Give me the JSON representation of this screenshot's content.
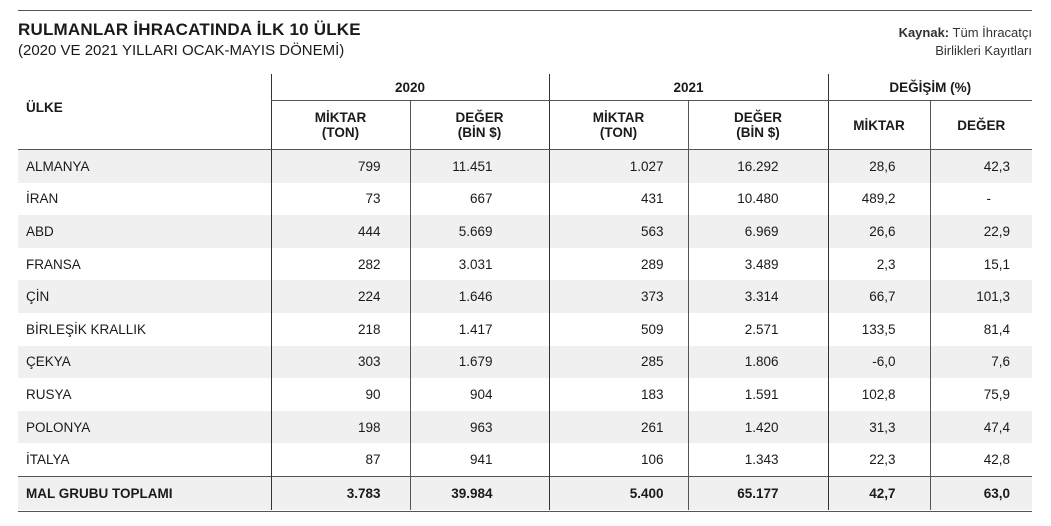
{
  "title": "RULMANLAR İHRACATINDA İLK 10 ÜLKE",
  "subtitle": "(2020 VE 2021 YILLARI OCAK-MAYIS DÖNEMİ)",
  "source": {
    "label": "Kaynak:",
    "line1": "Tüm İhracatçı",
    "line2": "Birlikleri Kayıtları"
  },
  "header": {
    "country": "ÜLKE",
    "year1": "2020",
    "year2": "2021",
    "change": "DEĞİŞİM (%)",
    "miktar_line1": "MİKTAR",
    "miktar_line2": "(TON)",
    "deger_line1": "DEĞER",
    "deger_line2": "(BİN $)",
    "change_miktar": "MİKTAR",
    "change_deger": "DEĞER"
  },
  "rows": [
    {
      "country": "ALMANYA",
      "m2020": "799",
      "d2020": "11.451",
      "m2021": "1.027",
      "d2021": "16.292",
      "cm": "28,6",
      "cd": "42,3"
    },
    {
      "country": "İRAN",
      "m2020": "73",
      "d2020": "667",
      "m2021": "431",
      "d2021": "10.480",
      "cm": "489,2",
      "cd": "-"
    },
    {
      "country": "ABD",
      "m2020": "444",
      "d2020": "5.669",
      "m2021": "563",
      "d2021": "6.969",
      "cm": "26,6",
      "cd": "22,9"
    },
    {
      "country": "FRANSA",
      "m2020": "282",
      "d2020": "3.031",
      "m2021": "289",
      "d2021": "3.489",
      "cm": "2,3",
      "cd": "15,1"
    },
    {
      "country": "ÇİN",
      "m2020": "224",
      "d2020": "1.646",
      "m2021": "373",
      "d2021": "3.314",
      "cm": "66,7",
      "cd": "101,3"
    },
    {
      "country": "BİRLEŞİK KRALLIK",
      "m2020": "218",
      "d2020": "1.417",
      "m2021": "509",
      "d2021": "2.571",
      "cm": "133,5",
      "cd": "81,4"
    },
    {
      "country": "ÇEKYA",
      "m2020": "303",
      "d2020": "1.679",
      "m2021": "285",
      "d2021": "1.806",
      "cm": "-6,0",
      "cd": "7,6"
    },
    {
      "country": "RUSYA",
      "m2020": "90",
      "d2020": "904",
      "m2021": "183",
      "d2021": "1.591",
      "cm": "102,8",
      "cd": "75,9"
    },
    {
      "country": "POLONYA",
      "m2020": "198",
      "d2020": "963",
      "m2021": "261",
      "d2021": "1.420",
      "cm": "31,3",
      "cd": "47,4"
    },
    {
      "country": "İTALYA",
      "m2020": "87",
      "d2020": "941",
      "m2021": "106",
      "d2021": "1.343",
      "cm": "22,3",
      "cd": "42,8"
    }
  ],
  "total": {
    "country": "MAL GRUBU TOPLAMI",
    "m2020": "3.783",
    "d2020": "39.984",
    "m2021": "5.400",
    "d2021": "65.177",
    "cm": "42,7",
    "cd": "63,0"
  }
}
